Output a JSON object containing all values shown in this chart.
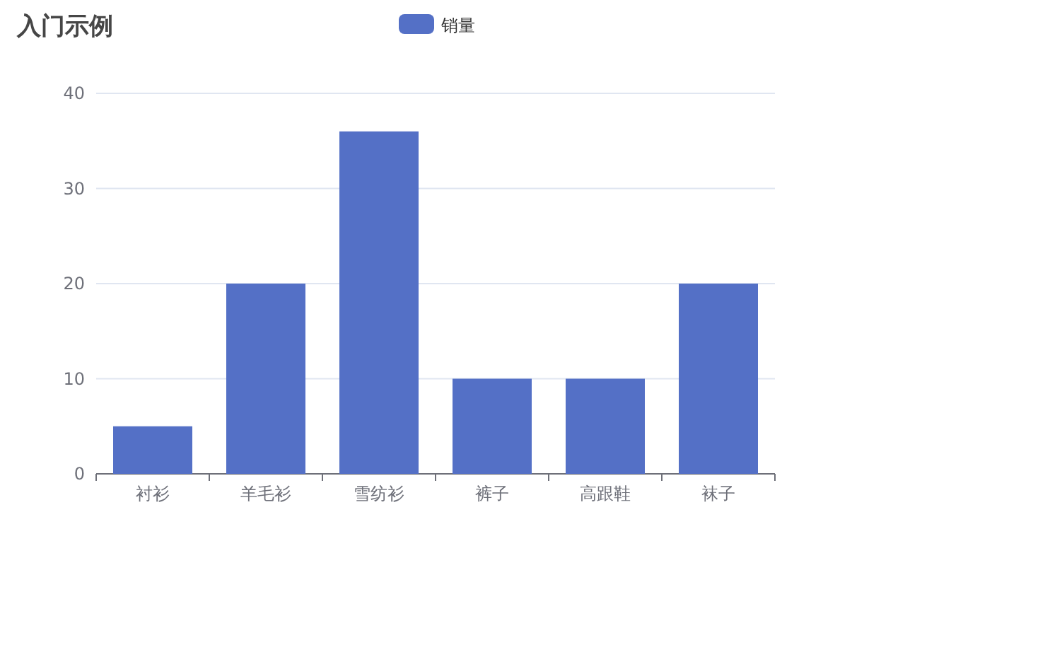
{
  "chart_data": {
    "type": "bar",
    "title": "入门示例",
    "categories": [
      "衬衫",
      "羊毛衫",
      "雪纺衫",
      "裤子",
      "高跟鞋",
      "袜子"
    ],
    "series": [
      {
        "name": "销量",
        "color": "#5470c6",
        "values": [
          5,
          20,
          36,
          10,
          10,
          20
        ]
      }
    ],
    "ylim": [
      0,
      40
    ],
    "yticks": [
      0,
      10,
      20,
      30,
      40
    ],
    "grid": "y",
    "legend": "top"
  }
}
